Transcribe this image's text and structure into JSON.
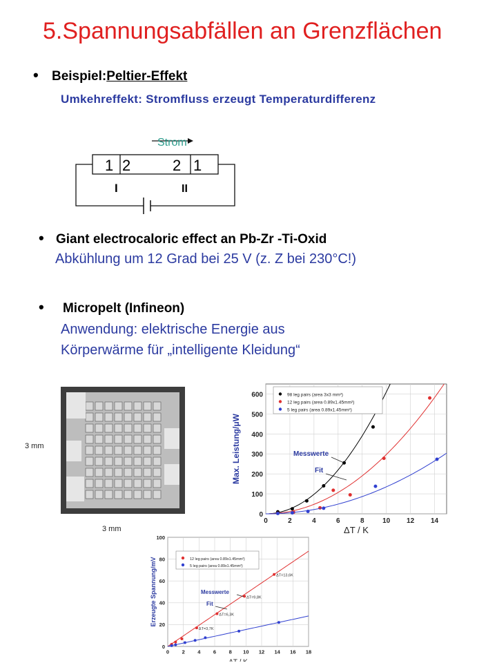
{
  "title": "5.Spannungsabfällen an Grenzflächen",
  "bullet1": {
    "prefix": "Beispiel:",
    "label": "Peltier-Effekt",
    "sub": "Umkehreffekt: Stromfluss erzeugt Temperaturdifferenz"
  },
  "circuit": {
    "current_label": "Strom",
    "numbers": [
      "1",
      "2",
      "2",
      "1"
    ],
    "region_labels": [
      "I",
      "II"
    ]
  },
  "bullet2": {
    "label": "Giant electrocaloric effect an Pb-Zr -Ti-Oxid",
    "sub": "Abkühlung um 12 Grad bei 25 V (z. Z bei 230°C!)"
  },
  "bullet3": {
    "label": "Micropelt (Infineon)",
    "sub_line1": "Anwendung: elektrische  Energie aus",
    "sub_line2": "Körperwärme für „intelligente Kleidung“"
  },
  "photo": {
    "dim_vertical": "3 mm",
    "dim_horizontal": "3 mm"
  },
  "colors": {
    "title": "#e02020",
    "text_blue": "#2b3aa0",
    "strom": "#2a9a8a",
    "series_black": "#000000",
    "series_red": "#e03030",
    "series_blue": "#3040d0"
  },
  "chart_data": [
    {
      "type": "scatter",
      "title": "",
      "xlabel": "ΔT / K",
      "ylabel": "Max. Leistung/μW",
      "xlim": [
        0,
        15
      ],
      "ylim": [
        0,
        650
      ],
      "x_ticks": [
        0,
        2,
        4,
        6,
        8,
        10,
        12,
        14
      ],
      "y_ticks": [
        0,
        100,
        200,
        300,
        400,
        500,
        600
      ],
      "grid": true,
      "legend_position": "top-left",
      "series": [
        {
          "name": "98 leg pairs (area 3x3 mm²)",
          "color": "#000000",
          "x": [
            1.0,
            2.2,
            3.4,
            4.8,
            6.5,
            8.9
          ],
          "y": [
            10,
            25,
            65,
            140,
            255,
            435
          ],
          "fit": {
            "a": 6.1,
            "p": 2
          }
        },
        {
          "name": "12 leg pairs (area 0.89x1.45mm²)",
          "color": "#e03030",
          "x": [
            1.0,
            2.3,
            4.5,
            5.6,
            7.0,
            9.8,
            13.6
          ],
          "y": [
            3,
            8,
            30,
            118,
            95,
            278,
            580
          ],
          "fit": {
            "a": 2.97,
            "p": 2
          }
        },
        {
          "name": "5 leg pairs (area 0.89x1.45mm²)",
          "color": "#3040d0",
          "x": [
            1.0,
            2.2,
            3.5,
            4.8,
            9.1,
            14.2
          ],
          "y": [
            2,
            5,
            12,
            28,
            138,
            273
          ],
          "fit": {
            "a": 1.35,
            "p": 2
          }
        }
      ],
      "annotations": [
        "Messwerte",
        "Fit"
      ]
    },
    {
      "type": "scatter",
      "title": "",
      "xlabel": "ΔT / K",
      "ylabel": "Erzeugte Spannung/mV",
      "xlim": [
        0,
        18
      ],
      "ylim": [
        0,
        100
      ],
      "x_ticks": [
        0,
        2,
        4,
        6,
        8,
        10,
        12,
        14,
        16,
        18
      ],
      "y_ticks": [
        0,
        20,
        40,
        60,
        80,
        100
      ],
      "grid": true,
      "legend_position": "top-left",
      "series": [
        {
          "name": "12 leg pairs (area 0.89x1.45mm²)",
          "color": "#e03030",
          "x": [
            0.5,
            1.0,
            1.8,
            3.7,
            6.3,
            9.8,
            13.6
          ],
          "y": [
            2,
            4,
            7,
            17,
            30,
            46,
            66
          ],
          "fit_slope": 4.85
        },
        {
          "name": "5 leg pairs (area 0.89x1.45mm²)",
          "color": "#3040d0",
          "x": [
            0.5,
            1.0,
            2.2,
            3.5,
            4.8,
            9.1,
            14.2
          ],
          "y": [
            0.7,
            1.5,
            3.5,
            5.5,
            8,
            14,
            22
          ],
          "fit_slope": 1.55
        }
      ],
      "point_labels": [
        "ΔT=13,6K",
        "ΔT=9,8K",
        "ΔT=6,3K",
        "ΔT=3,7K"
      ],
      "annotations": [
        "Messwerte",
        "Fit"
      ]
    }
  ]
}
